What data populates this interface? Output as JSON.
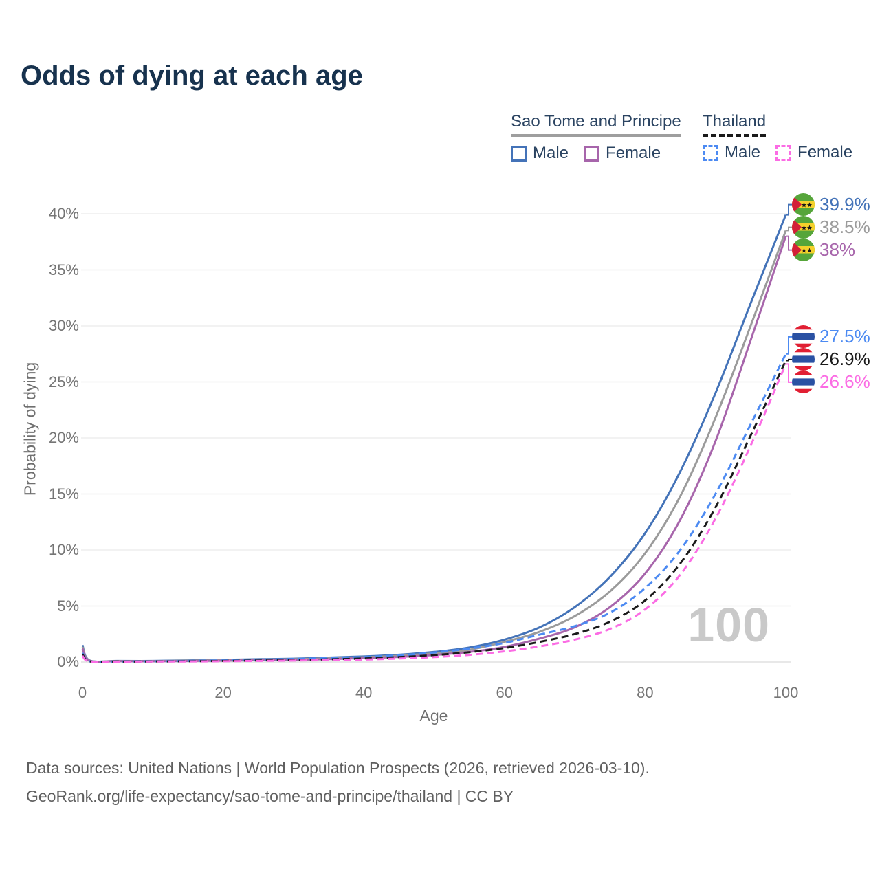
{
  "title": "Odds of dying at each age",
  "legend": {
    "groups": [
      {
        "label": "Sao Tome and Principe",
        "underline_color": "#9e9e9e",
        "underline_style": "solid",
        "items": [
          {
            "label": "Male",
            "color": "#4473b8",
            "dashed": false
          },
          {
            "label": "Female",
            "color": "#a765ab",
            "dashed": false
          }
        ]
      },
      {
        "label": "Thailand",
        "underline_color": "#1a1a1a",
        "underline_style": "dashed",
        "items": [
          {
            "label": "Male",
            "color": "#4c8af2",
            "dashed": true
          },
          {
            "label": "Female",
            "color": "#fb6ce4",
            "dashed": true
          }
        ]
      }
    ]
  },
  "chart_data": {
    "type": "line",
    "title": "Odds of dying at each age",
    "xlabel": "Age",
    "ylabel": "Probability of dying",
    "xlim": [
      0,
      100
    ],
    "ylim": [
      0,
      40
    ],
    "x_ticks": [
      0,
      20,
      40,
      60,
      80,
      100
    ],
    "y_ticks_pct": [
      0,
      5,
      10,
      15,
      20,
      25,
      30,
      35,
      40
    ],
    "grid": "horizontal",
    "legend_position": "top-right",
    "watermark": "100",
    "series": [
      {
        "id": "stp-male",
        "country": "Sao Tome and Principe",
        "name": "Male",
        "flag": "sao-tome",
        "color": "#4473b8",
        "dashed": false,
        "end_label": "39.9%",
        "end_value": 39.9,
        "points": [
          [
            0,
            1.5
          ],
          [
            1,
            0.15
          ],
          [
            5,
            0.1
          ],
          [
            10,
            0.1
          ],
          [
            15,
            0.15
          ],
          [
            20,
            0.2
          ],
          [
            25,
            0.25
          ],
          [
            30,
            0.3
          ],
          [
            35,
            0.4
          ],
          [
            40,
            0.5
          ],
          [
            45,
            0.65
          ],
          [
            50,
            0.9
          ],
          [
            55,
            1.3
          ],
          [
            60,
            2.0
          ],
          [
            65,
            3.1
          ],
          [
            70,
            4.9
          ],
          [
            75,
            7.6
          ],
          [
            80,
            11.5
          ],
          [
            85,
            17.0
          ],
          [
            90,
            24.0
          ],
          [
            95,
            32.0
          ],
          [
            100,
            39.9
          ]
        ]
      },
      {
        "id": "stp-both",
        "country": "Sao Tome and Principe",
        "name": "",
        "flag": "sao-tome",
        "color": "#9b9b9b",
        "dashed": false,
        "end_label": "38.5%",
        "end_value": 38.5,
        "points": [
          [
            0,
            1.35
          ],
          [
            1,
            0.13
          ],
          [
            5,
            0.09
          ],
          [
            10,
            0.08
          ],
          [
            15,
            0.12
          ],
          [
            20,
            0.16
          ],
          [
            25,
            0.2
          ],
          [
            30,
            0.25
          ],
          [
            35,
            0.33
          ],
          [
            40,
            0.43
          ],
          [
            45,
            0.56
          ],
          [
            50,
            0.77
          ],
          [
            55,
            1.1
          ],
          [
            60,
            1.8
          ],
          [
            65,
            2.7
          ],
          [
            70,
            4.1
          ],
          [
            75,
            6.3
          ],
          [
            80,
            9.7
          ],
          [
            85,
            14.8
          ],
          [
            90,
            21.8
          ],
          [
            95,
            30.0
          ],
          [
            100,
            38.5
          ]
        ]
      },
      {
        "id": "stp-female",
        "country": "Sao Tome and Principe",
        "name": "Female",
        "flag": "sao-tome",
        "color": "#a765ab",
        "dashed": false,
        "end_label": "38%",
        "end_value": 38.0,
        "points": [
          [
            0,
            1.2
          ],
          [
            1,
            0.11
          ],
          [
            5,
            0.08
          ],
          [
            10,
            0.07
          ],
          [
            15,
            0.09
          ],
          [
            20,
            0.12
          ],
          [
            25,
            0.16
          ],
          [
            30,
            0.2
          ],
          [
            35,
            0.26
          ],
          [
            40,
            0.35
          ],
          [
            45,
            0.46
          ],
          [
            50,
            0.63
          ],
          [
            55,
            0.9
          ],
          [
            60,
            1.35
          ],
          [
            65,
            2.1
          ],
          [
            70,
            3.1
          ],
          [
            75,
            4.9
          ],
          [
            80,
            7.9
          ],
          [
            85,
            12.7
          ],
          [
            90,
            19.7
          ],
          [
            95,
            28.7
          ],
          [
            100,
            38.0
          ]
        ]
      },
      {
        "id": "th-male",
        "country": "Thailand",
        "name": "Male",
        "flag": "thailand",
        "color": "#4c8af2",
        "dashed": true,
        "end_label": "27.5%",
        "end_value": 27.5,
        "points": [
          [
            0,
            0.8
          ],
          [
            1,
            0.07
          ],
          [
            5,
            0.05
          ],
          [
            10,
            0.06
          ],
          [
            15,
            0.1
          ],
          [
            20,
            0.15
          ],
          [
            25,
            0.2
          ],
          [
            30,
            0.27
          ],
          [
            35,
            0.35
          ],
          [
            40,
            0.45
          ],
          [
            45,
            0.6
          ],
          [
            50,
            0.85
          ],
          [
            55,
            1.2
          ],
          [
            60,
            1.7
          ],
          [
            65,
            2.45
          ],
          [
            70,
            3.2
          ],
          [
            75,
            4.4
          ],
          [
            80,
            6.6
          ],
          [
            85,
            10.0
          ],
          [
            90,
            15.0
          ],
          [
            95,
            21.2
          ],
          [
            100,
            27.5
          ]
        ]
      },
      {
        "id": "th-both",
        "country": "Thailand",
        "name": "",
        "flag": "thailand",
        "color": "#1a1a1a",
        "dashed": true,
        "end_label": "26.9%",
        "end_value": 26.9,
        "points": [
          [
            0,
            0.7
          ],
          [
            1,
            0.06
          ],
          [
            5,
            0.04
          ],
          [
            10,
            0.05
          ],
          [
            15,
            0.07
          ],
          [
            20,
            0.1
          ],
          [
            25,
            0.14
          ],
          [
            30,
            0.18
          ],
          [
            35,
            0.24
          ],
          [
            40,
            0.32
          ],
          [
            45,
            0.44
          ],
          [
            50,
            0.62
          ],
          [
            55,
            0.88
          ],
          [
            60,
            1.25
          ],
          [
            65,
            1.8
          ],
          [
            70,
            2.5
          ],
          [
            75,
            3.6
          ],
          [
            80,
            5.5
          ],
          [
            85,
            8.8
          ],
          [
            90,
            13.8
          ],
          [
            95,
            20.2
          ],
          [
            100,
            26.9
          ]
        ]
      },
      {
        "id": "th-female",
        "country": "Thailand",
        "name": "Female",
        "flag": "thailand",
        "color": "#fb6ce4",
        "dashed": true,
        "end_label": "26.6%",
        "end_value": 26.6,
        "points": [
          [
            0,
            0.55
          ],
          [
            1,
            0.04
          ],
          [
            5,
            0.03
          ],
          [
            10,
            0.04
          ],
          [
            15,
            0.05
          ],
          [
            20,
            0.07
          ],
          [
            25,
            0.1
          ],
          [
            30,
            0.13
          ],
          [
            35,
            0.17
          ],
          [
            40,
            0.22
          ],
          [
            45,
            0.31
          ],
          [
            50,
            0.44
          ],
          [
            55,
            0.64
          ],
          [
            60,
            0.95
          ],
          [
            65,
            1.4
          ],
          [
            70,
            2.0
          ],
          [
            75,
            2.95
          ],
          [
            80,
            4.7
          ],
          [
            85,
            7.8
          ],
          [
            90,
            12.8
          ],
          [
            95,
            19.3
          ],
          [
            100,
            26.6
          ]
        ]
      }
    ]
  },
  "footer": {
    "line1": "Data sources: United Nations | World Population Prospects (2026, retrieved 2026-03-10).",
    "line2": "GeoRank.org/life-expectancy/sao-tome-and-principe/thailand | CC BY"
  }
}
